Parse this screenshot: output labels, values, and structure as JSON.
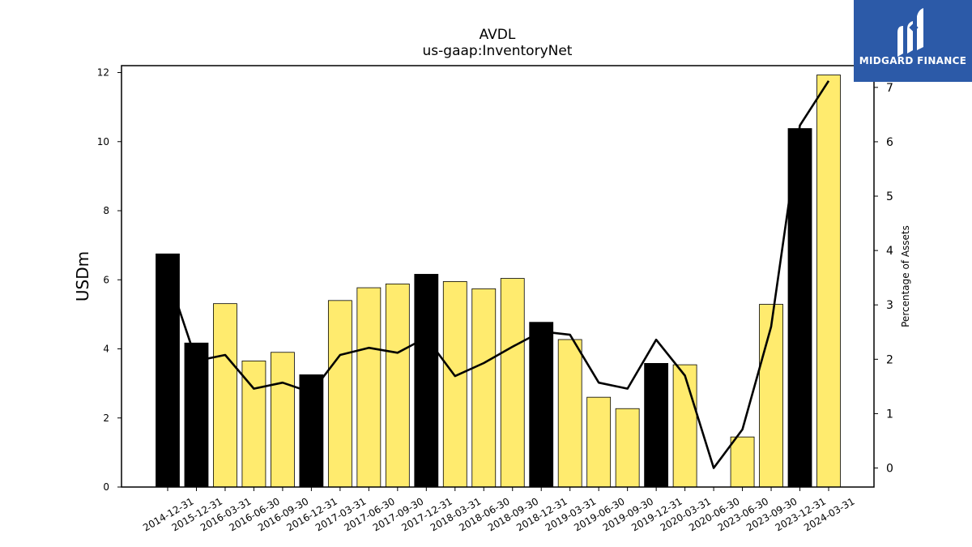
{
  "brand": {
    "name": "MIDGARD FINANCE",
    "logo_icon": "midgard-m-icon",
    "background": "#2c5aa8"
  },
  "chart_data": {
    "type": "bar",
    "title": "AVDL",
    "subtitle": "us-gaap:InventoryNet",
    "ylabel": "USDm",
    "y2label": "Percentage of Assets",
    "ylim": [
      0,
      12.2
    ],
    "y2lim": [
      -0.35,
      7.4
    ],
    "yticks": [
      0,
      2,
      4,
      6,
      8,
      10,
      12
    ],
    "y2ticks": [
      0,
      1,
      2,
      3,
      4,
      5,
      6,
      7
    ],
    "categories": [
      "2014-12-31",
      "2015-12-31",
      "2016-03-31",
      "2016-06-30",
      "2016-09-30",
      "2016-12-31",
      "2017-03-31",
      "2017-06-30",
      "2017-09-30",
      "2017-12-31",
      "2018-03-31",
      "2018-06-30",
      "2018-09-30",
      "2018-12-31",
      "2019-03-31",
      "2019-06-30",
      "2019-09-30",
      "2019-12-31",
      "2020-03-31",
      "2020-06-30",
      "2023-06-30",
      "2023-09-30",
      "2023-12-31",
      "2024-03-31"
    ],
    "values": [
      6.75,
      4.17,
      5.31,
      3.65,
      3.9,
      3.25,
      5.4,
      5.77,
      5.88,
      6.16,
      5.95,
      5.74,
      6.04,
      4.77,
      4.27,
      2.6,
      2.27,
      3.58,
      3.54,
      0.0,
      1.45,
      5.29,
      10.38,
      11.93
    ],
    "annual": [
      true,
      true,
      false,
      false,
      false,
      true,
      false,
      false,
      false,
      true,
      false,
      false,
      false,
      true,
      false,
      false,
      false,
      true,
      false,
      false,
      false,
      false,
      true,
      false
    ],
    "percent_of_assets": [
      3.55,
      1.97,
      2.08,
      1.46,
      1.57,
      1.39,
      2.08,
      2.21,
      2.12,
      2.4,
      1.69,
      1.93,
      2.23,
      2.51,
      2.45,
      1.57,
      1.46,
      2.36,
      1.7,
      0.0,
      0.71,
      2.6,
      6.3,
      7.12
    ],
    "colors": {
      "annual": "#000000",
      "quarterly": "#ffeb6e",
      "line": "#000000"
    },
    "grid": false
  }
}
